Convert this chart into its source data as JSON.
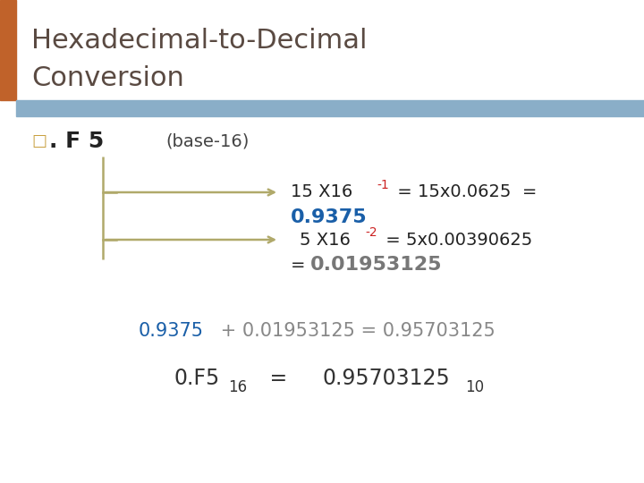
{
  "title_line1": "Hexadecimal-to-Decimal",
  "title_line2": "Conversion",
  "title_color": "#5a4a42",
  "title_fontsize": 22,
  "bg_color": "#ffffff",
  "orange_bar_color": "#c0622a",
  "blue_bar_color": "#8aaec8",
  "bullet_color": "#c8a040",
  "bullet_symbol": "□",
  "hex_label": ". F 5",
  "hex_color": "#222222",
  "base_label": "(base-16)",
  "base_color": "#444444",
  "arrow_color": "#b0a96a",
  "line2_bold_color": "#1a5fa8",
  "line4_bold_color": "#777777",
  "final_color": "#333333",
  "red_color": "#cc2222"
}
